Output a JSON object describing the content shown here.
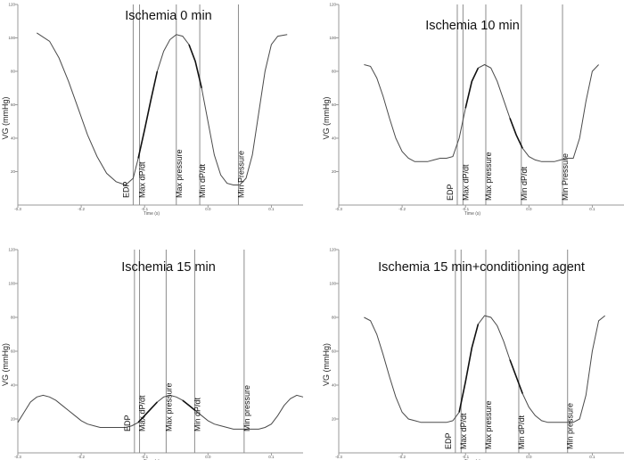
{
  "chart_data": [
    {
      "type": "line",
      "title": "Ischemia 0 min",
      "xlabel": "Time (s)",
      "ylabel": "VG (mmHg)",
      "xlim": [
        -0.3,
        0.15
      ],
      "ylim": [
        0,
        120
      ],
      "xticks": [
        -0.3,
        -0.2,
        -0.1,
        0.0,
        0.1
      ],
      "xtick_labels": [
        "-0.3",
        "-0.2",
        "-0.1",
        "0.0",
        "0.1"
      ],
      "yticks": [
        20,
        40,
        60,
        80,
        100,
        120
      ],
      "ytick_labels": [
        "20",
        "40",
        "60",
        "80",
        "100",
        "120"
      ],
      "series": [
        {
          "name": "pressure",
          "x": [
            -0.27,
            -0.25,
            -0.235,
            -0.22,
            -0.205,
            -0.19,
            -0.175,
            -0.16,
            -0.145,
            -0.13,
            -0.118,
            -0.11,
            -0.1,
            -0.09,
            -0.08,
            -0.07,
            -0.06,
            -0.05,
            -0.04,
            -0.03,
            -0.02,
            -0.01,
            0.0,
            0.01,
            0.02,
            0.03,
            0.04,
            0.05,
            0.06,
            0.07,
            0.08,
            0.09,
            0.1,
            0.11,
            0.125
          ],
          "y": [
            103,
            98,
            88,
            74,
            58,
            42,
            29,
            19,
            14,
            12,
            16,
            28,
            45,
            63,
            80,
            92,
            99,
            102,
            101,
            96,
            86,
            70,
            50,
            30,
            18,
            13,
            12,
            12,
            16,
            30,
            55,
            80,
            96,
            101,
            102
          ]
        }
      ],
      "markers": [
        {
          "label": "EDP",
          "x": -0.118
        },
        {
          "label": "Max dP/dt",
          "x": -0.108
        },
        {
          "label": "Max pressure",
          "x": -0.05
        },
        {
          "label": "Min dP/dt",
          "x": -0.013
        },
        {
          "label": "Min Pressure",
          "x": 0.048
        }
      ]
    },
    {
      "type": "line",
      "title": "Ischemia 10 min",
      "xlabel": "Time (s)",
      "ylabel": "VG (mmHg)",
      "xlim": [
        -0.3,
        0.15
      ],
      "ylim": [
        0,
        120
      ],
      "xticks": [
        -0.3,
        -0.2,
        -0.1,
        0.0,
        0.1
      ],
      "xtick_labels": [
        "-0.3",
        "-0.2",
        "-0.1",
        "0.0",
        "0.1"
      ],
      "yticks": [
        20,
        40,
        60,
        80,
        100,
        120
      ],
      "ytick_labels": [
        "20",
        "40",
        "60",
        "80",
        "100",
        "120"
      ],
      "series": [
        {
          "name": "pressure",
          "x": [
            -0.26,
            -0.25,
            -0.24,
            -0.23,
            -0.22,
            -0.21,
            -0.2,
            -0.19,
            -0.18,
            -0.17,
            -0.16,
            -0.15,
            -0.14,
            -0.13,
            -0.12,
            -0.11,
            -0.1,
            -0.09,
            -0.08,
            -0.07,
            -0.06,
            -0.05,
            -0.04,
            -0.03,
            -0.02,
            -0.01,
            0.0,
            0.01,
            0.02,
            0.03,
            0.04,
            0.05,
            0.06,
            0.07,
            0.08,
            0.09,
            0.1,
            0.11
          ],
          "y": [
            84,
            83,
            76,
            65,
            52,
            40,
            32,
            28,
            26,
            26,
            26,
            27,
            28,
            28,
            29,
            40,
            58,
            74,
            82,
            84,
            82,
            74,
            63,
            52,
            42,
            34,
            29,
            27,
            26,
            26,
            26,
            27,
            28,
            28,
            40,
            62,
            80,
            84
          ]
        }
      ],
      "markers": [
        {
          "label": "EDP",
          "x": -0.113
        },
        {
          "label": "Max dP/dt",
          "x": -0.104
        },
        {
          "label": "Max pressure",
          "x": -0.068
        },
        {
          "label": "Min dP/dt",
          "x": -0.012
        },
        {
          "label": "Min Pressure",
          "x": 0.053
        }
      ]
    },
    {
      "type": "line",
      "title": "Ischemia 15 min",
      "xlabel": "Time (s)",
      "ylabel": "VG (mmHg)",
      "xlim": [
        -0.3,
        0.15
      ],
      "ylim": [
        0,
        120
      ],
      "xticks": [
        -0.3,
        -0.2,
        -0.1,
        0.0,
        0.1
      ],
      "xtick_labels": [
        "-0.3",
        "-0.2",
        "-0.1",
        "0.0",
        "0.1"
      ],
      "yticks": [
        20,
        40,
        60,
        80,
        100,
        120
      ],
      "ytick_labels": [
        "20",
        "40",
        "60",
        "80",
        "100",
        "120"
      ],
      "series": [
        {
          "name": "pressure",
          "x": [
            -0.3,
            -0.29,
            -0.28,
            -0.27,
            -0.26,
            -0.25,
            -0.24,
            -0.23,
            -0.22,
            -0.21,
            -0.2,
            -0.19,
            -0.18,
            -0.17,
            -0.16,
            -0.15,
            -0.14,
            -0.13,
            -0.12,
            -0.11,
            -0.1,
            -0.09,
            -0.08,
            -0.07,
            -0.06,
            -0.05,
            -0.04,
            -0.03,
            -0.02,
            -0.01,
            0.0,
            0.01,
            0.02,
            0.03,
            0.04,
            0.05,
            0.06,
            0.07,
            0.08,
            0.09,
            0.1,
            0.11,
            0.12,
            0.13,
            0.14,
            0.15
          ],
          "y": [
            18,
            24,
            30,
            33,
            34,
            33,
            31,
            28,
            25,
            22,
            19,
            17,
            16,
            15,
            15,
            15,
            15,
            15,
            16,
            18,
            22,
            26,
            30,
            33,
            34,
            33,
            31,
            28,
            25,
            22,
            19,
            17,
            16,
            15,
            14,
            14,
            14,
            14,
            14,
            15,
            17,
            22,
            28,
            32,
            34,
            33
          ]
        }
      ],
      "markers": [
        {
          "label": "EDP",
          "x": -0.116
        },
        {
          "label": "Max dP/dt",
          "x": -0.108
        },
        {
          "label": "Max pressure",
          "x": -0.066
        },
        {
          "label": "Min dP/dt",
          "x": -0.021
        },
        {
          "label": "Min pressure",
          "x": 0.057
        }
      ]
    },
    {
      "type": "line",
      "title": "Ischemia 15 min+conditioning agent",
      "xlabel": "Time (s)",
      "ylabel": "VG (mmHg)",
      "xlim": [
        -0.3,
        0.15
      ],
      "ylim": [
        0,
        120
      ],
      "xticks": [
        -0.3,
        -0.2,
        -0.1,
        0.0,
        0.1
      ],
      "xtick_labels": [
        "-0.3",
        "-0.2",
        "-0.1",
        "0.0",
        "0.1"
      ],
      "yticks": [
        20,
        40,
        60,
        80,
        100,
        120
      ],
      "ytick_labels": [
        "20",
        "40",
        "60",
        "80",
        "100",
        "120"
      ],
      "series": [
        {
          "name": "pressure",
          "x": [
            -0.26,
            -0.25,
            -0.24,
            -0.23,
            -0.22,
            -0.21,
            -0.2,
            -0.19,
            -0.18,
            -0.17,
            -0.16,
            -0.15,
            -0.14,
            -0.13,
            -0.12,
            -0.11,
            -0.1,
            -0.09,
            -0.08,
            -0.07,
            -0.06,
            -0.05,
            -0.04,
            -0.03,
            -0.02,
            -0.01,
            0.0,
            0.01,
            0.02,
            0.03,
            0.04,
            0.05,
            0.06,
            0.07,
            0.08,
            0.09,
            0.1,
            0.11,
            0.12
          ],
          "y": [
            80,
            78,
            70,
            58,
            45,
            33,
            24,
            20,
            19,
            18,
            18,
            18,
            18,
            18,
            19,
            24,
            42,
            62,
            76,
            81,
            80,
            75,
            66,
            55,
            45,
            35,
            27,
            22,
            19,
            18,
            18,
            18,
            18,
            18,
            20,
            34,
            60,
            78,
            81
          ]
        }
      ],
      "markers": [
        {
          "label": "EDP",
          "x": -0.116
        },
        {
          "label": "Max dP/dt",
          "x": -0.107
        },
        {
          "label": "Max pressure",
          "x": -0.068
        },
        {
          "label": "Min dP/dt",
          "x": -0.016
        },
        {
          "label": "Min pressure",
          "x": 0.061
        }
      ]
    }
  ]
}
